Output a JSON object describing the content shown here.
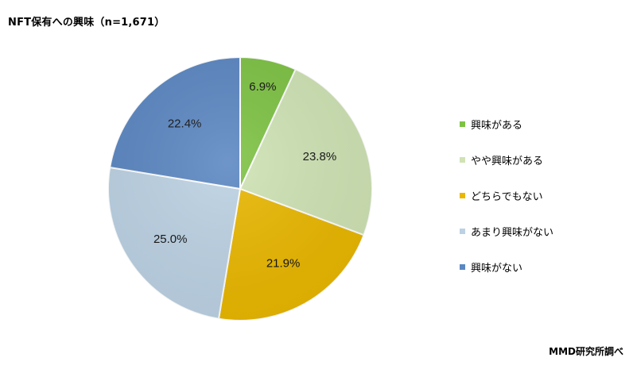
{
  "title": "NFT保有への興味（n=1,671）",
  "source": "MMD研究所調べ",
  "chart_data": {
    "type": "pie",
    "categories": [
      "興味がある",
      "やや興味がある",
      "どちらでもない",
      "あまり興味がない",
      "興味がない"
    ],
    "values": [
      6.9,
      23.8,
      21.9,
      25.0,
      22.4
    ],
    "labels": [
      "6.9%",
      "23.8%",
      "21.9%",
      "25.0%",
      "22.4%"
    ],
    "colors": [
      "#7dc243",
      "#cfe3b4",
      "#e9b700",
      "#bcd2e4",
      "#5b87c2"
    ],
    "start_angle": "12 o'clock",
    "direction": "clockwise",
    "legend": "right"
  }
}
